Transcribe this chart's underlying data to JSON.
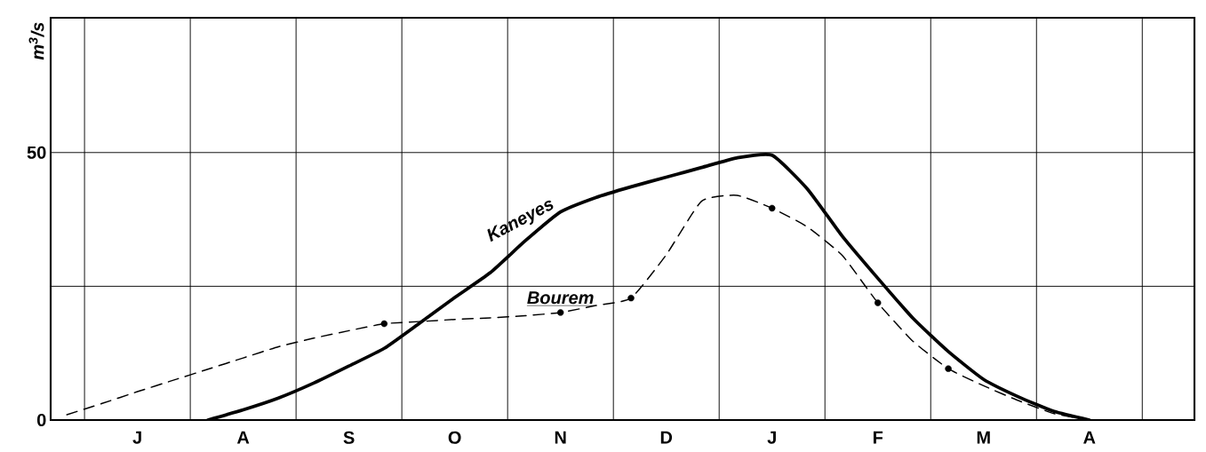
{
  "chart_data": {
    "type": "line",
    "ylabel": "m$^{3}$/s",
    "ylim": [
      0,
      75.2
    ],
    "categories": [
      null,
      null,
      "J",
      null,
      null,
      "A",
      null,
      null,
      "S",
      null,
      null,
      "O",
      null,
      null,
      "N",
      null,
      null,
      "D",
      null,
      null,
      "J",
      null,
      null,
      "F",
      null,
      null,
      "M",
      null,
      null,
      "A",
      null,
      null
    ],
    "yticks": [
      0,
      {
        "value": 25,
        "label": null
      },
      50
    ],
    "grid": true,
    "series": [
      {
        "name": "Kaneyes",
        "color": "#000000",
        "line_style": "solid",
        "values": [
          null,
          null,
          null,
          null,
          0,
          1.9,
          4.1,
          6.9,
          10.1,
          13.4,
          18.1,
          22.9,
          27.5,
          33.5,
          38.9,
          41.6,
          43.6,
          45.4,
          47.2,
          49.0,
          49.5,
          43.2,
          34.3,
          26.5,
          19.0,
          12.8,
          7.6,
          4.3,
          1.6,
          0,
          null,
          null
        ]
      },
      {
        "name": "Bourem",
        "color": "#000000",
        "line_style": "dashed",
        "values": [
          1.0,
          3.1,
          5.3,
          7.4,
          9.5,
          11.6,
          13.7,
          15.3,
          16.7,
          18.0,
          18.4,
          18.8,
          19.1,
          19.5,
          20.1,
          21.4,
          22.8,
          30.9,
          40.9,
          42.0,
          39.6,
          36.1,
          30.7,
          21.9,
          14.7,
          9.6,
          6.4,
          3.6,
          1.2,
          0,
          null,
          null
        ]
      },
      {
        "type": "scatter",
        "marker": "circle",
        "color": "#000000",
        "values": [
          null,
          null,
          null,
          null,
          null,
          null,
          null,
          null,
          null,
          18.0,
          null,
          null,
          null,
          null,
          20.1,
          null,
          22.8,
          null,
          null,
          null,
          39.6,
          null,
          null,
          21.9,
          null,
          9.6,
          null,
          null,
          null,
          null,
          null,
          null
        ]
      }
    ]
  }
}
